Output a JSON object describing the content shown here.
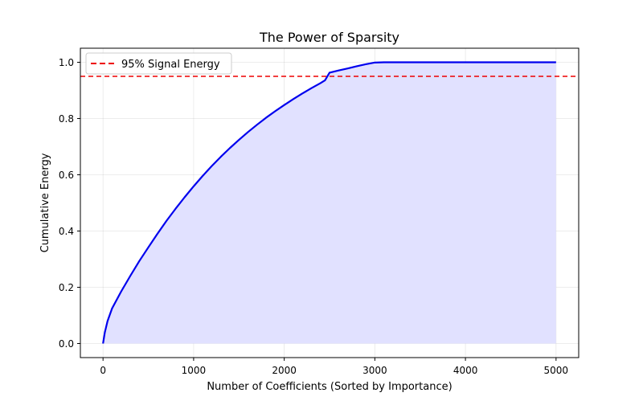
{
  "chart_data": {
    "type": "area",
    "title": "The Power of Sparsity",
    "xlabel": "Number of Coefficients (Sorted by Importance)",
    "ylabel": "Cumulative Energy",
    "xlim": [
      -250,
      5250
    ],
    "ylim": [
      -0.05,
      1.05
    ],
    "x_ticks": [
      0,
      1000,
      2000,
      3000,
      4000,
      5000
    ],
    "y_ticks": [
      0.0,
      0.2,
      0.4,
      0.6,
      0.8,
      1.0
    ],
    "x_tick_labels": [
      "0",
      "1000",
      "2000",
      "3000",
      "4000",
      "5000"
    ],
    "y_tick_labels": [
      "0.0",
      "0.2",
      "0.4",
      "0.6",
      "0.8",
      "1.0"
    ],
    "grid": true,
    "legend_position": "top-left",
    "series": [
      {
        "color": "#0000ee",
        "fill_color": "#e1e1ff",
        "x": [
          0,
          20,
          50,
          100,
          150,
          200,
          300,
          400,
          500,
          600,
          700,
          800,
          900,
          1000,
          1100,
          1200,
          1300,
          1400,
          1500,
          1600,
          1700,
          1800,
          1900,
          2000,
          2100,
          2200,
          2300,
          2400,
          2450,
          2500,
          2600,
          2700,
          2800,
          2900,
          3000,
          3100,
          3500,
          4000,
          4500,
          5000
        ],
        "y": [
          0.0,
          0.04,
          0.08,
          0.125,
          0.155,
          0.185,
          0.24,
          0.293,
          0.342,
          0.39,
          0.436,
          0.479,
          0.52,
          0.559,
          0.596,
          0.631,
          0.664,
          0.695,
          0.724,
          0.752,
          0.778,
          0.803,
          0.826,
          0.848,
          0.869,
          0.889,
          0.908,
          0.926,
          0.936,
          0.963,
          0.971,
          0.978,
          0.986,
          0.993,
          0.999,
          1.0,
          1.0,
          1.0,
          1.0,
          1.0
        ]
      }
    ],
    "reference_line": {
      "y": 0.95,
      "label": "95% Signal Energy",
      "color": "#ee0000"
    }
  }
}
